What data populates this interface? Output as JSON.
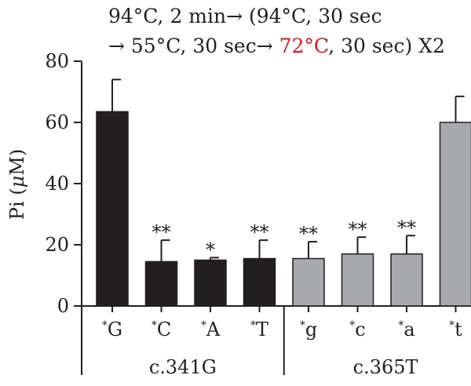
{
  "chart_data": {
    "type": "bar",
    "title_line1": "94°C, 2 min→ (94°C, 30 sec",
    "title_line2_pre": "→ 55°C, 30 sec→ ",
    "title_line2_red": "72°C",
    "title_line2_post": ", 30 sec) X2",
    "ylabel_pre": "Pi (",
    "ylabel_mu": "μ",
    "ylabel_post": "M)",
    "ylim": [
      0,
      80
    ],
    "yticks": [
      "0",
      "20",
      "40",
      "60",
      "80"
    ],
    "ytick_values": [
      0,
      20,
      40,
      60,
      80
    ],
    "categories": [
      {
        "star": "*",
        "label": "G",
        "value": 63.5,
        "error": 10.5,
        "sig": "",
        "group": 0
      },
      {
        "star": "*",
        "label": "C",
        "value": 14.5,
        "error": 7,
        "sig": "**",
        "group": 0
      },
      {
        "star": "*",
        "label": "A",
        "value": 15.0,
        "error": 0.8,
        "sig": "*",
        "group": 0
      },
      {
        "star": "*",
        "label": "T",
        "value": 15.5,
        "error": 6,
        "sig": "**",
        "group": 0
      },
      {
        "star": "*",
        "label": "g",
        "value": 15.5,
        "error": 5.5,
        "sig": "**",
        "group": 1
      },
      {
        "star": "*",
        "label": "c",
        "value": 17.0,
        "error": 5.5,
        "sig": "**",
        "group": 1
      },
      {
        "star": "*",
        "label": "a",
        "value": 17.0,
        "error": 6,
        "sig": "**",
        "group": 1
      },
      {
        "star": "*",
        "label": "t",
        "value": 60.0,
        "error": 8.5,
        "sig": "",
        "group": 1
      }
    ],
    "groups": [
      {
        "label": "c.341G",
        "color": "#231f20"
      },
      {
        "label": "c.365T",
        "color": "#a7a9ac"
      }
    ]
  }
}
